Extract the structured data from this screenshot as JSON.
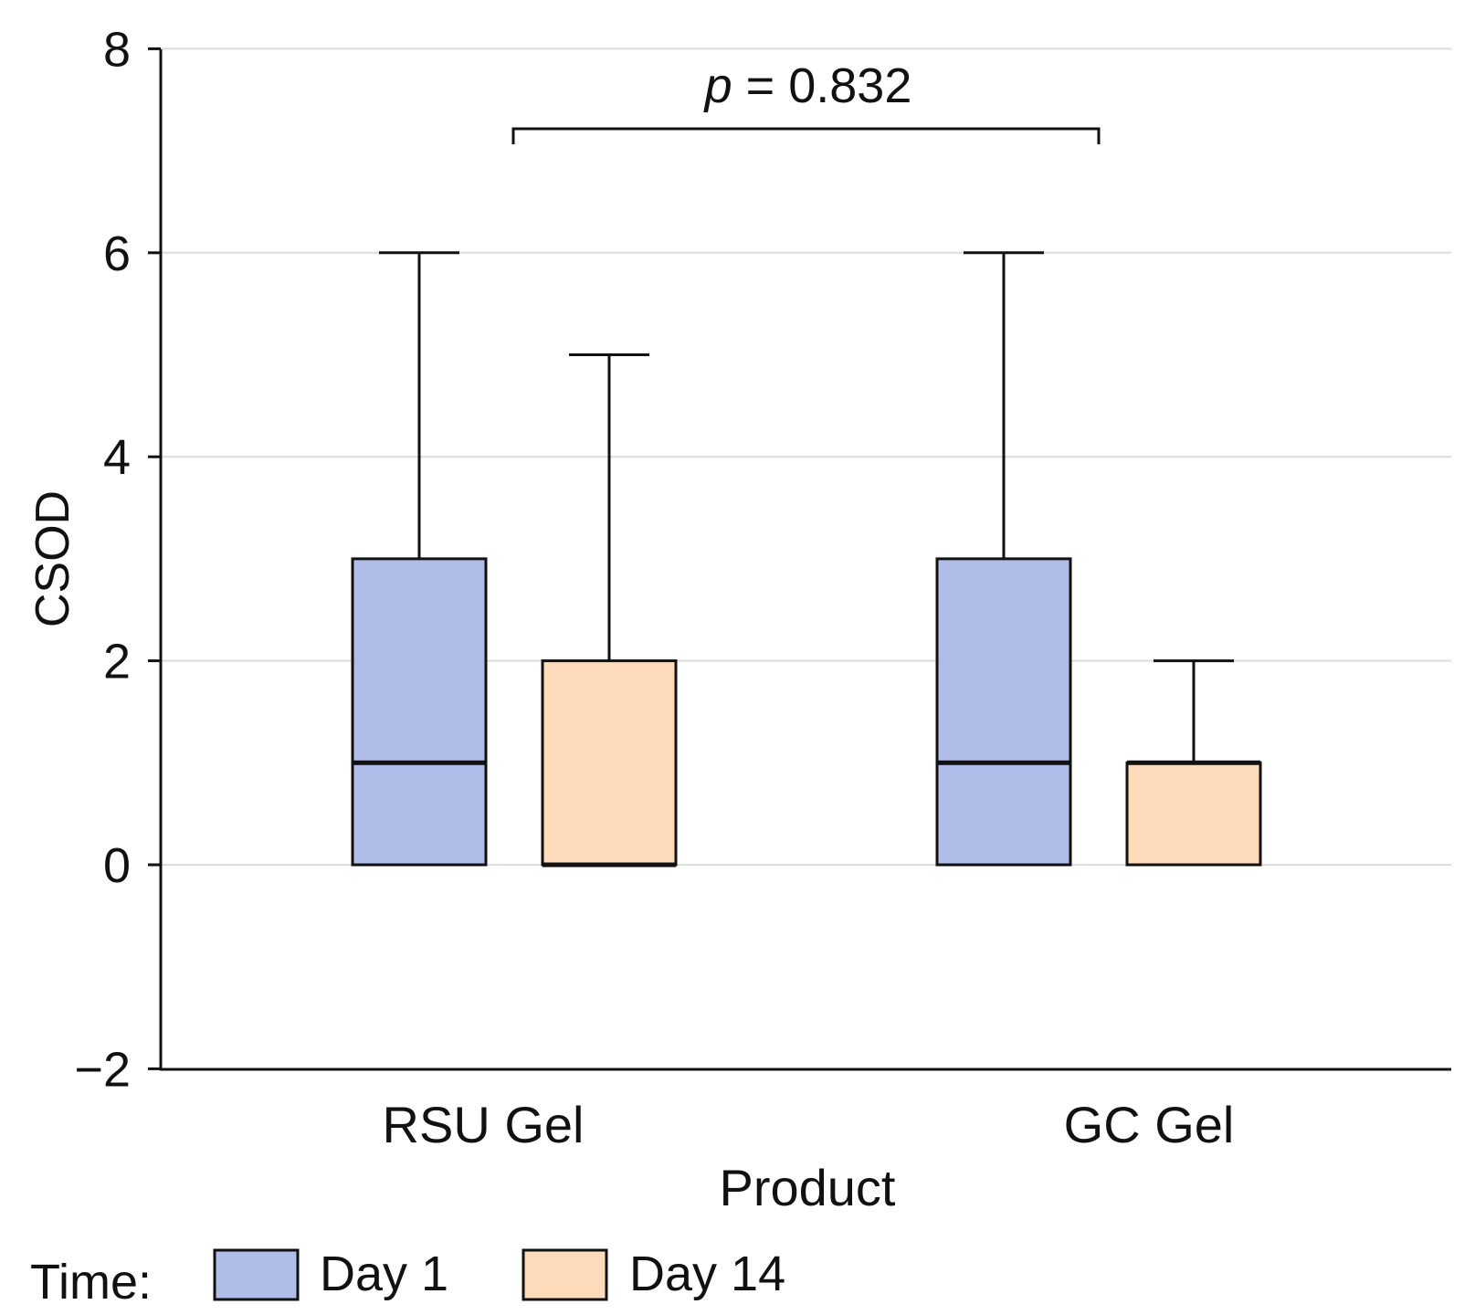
{
  "chart_data": {
    "type": "box",
    "title": "",
    "xlabel": "Product",
    "ylabel": "CSOD",
    "ylim": [
      -2,
      8
    ],
    "yticks": [
      -2,
      0,
      2,
      4,
      6,
      8
    ],
    "ytick_labels": [
      "−2",
      "0",
      "2",
      "4",
      "6",
      "8"
    ],
    "grid": true,
    "categories": [
      "RSU Gel",
      "GC Gel"
    ],
    "legend": {
      "title": "Time:",
      "placement": "bottom-left"
    },
    "series": [
      {
        "name": "Day 1",
        "color": "#b0bde9",
        "boxes": [
          {
            "min": 0,
            "q1": 0,
            "median": 1,
            "q3": 3,
            "max": 6
          },
          {
            "min": 0,
            "q1": 0,
            "median": 1,
            "q3": 3,
            "max": 6
          }
        ]
      },
      {
        "name": "Day 14",
        "color": "#fddbbb",
        "boxes": [
          {
            "min": 0,
            "q1": 0,
            "median": 0,
            "q3": 2,
            "max": 5
          },
          {
            "min": 0,
            "q1": 0,
            "median": 1,
            "q3": 1,
            "max": 2
          }
        ]
      }
    ],
    "annotations": [
      {
        "type": "bracket",
        "from": "RSU Gel",
        "to": "GC Gel",
        "p_label": "p",
        "p_value_text": " = 0.832"
      }
    ]
  }
}
